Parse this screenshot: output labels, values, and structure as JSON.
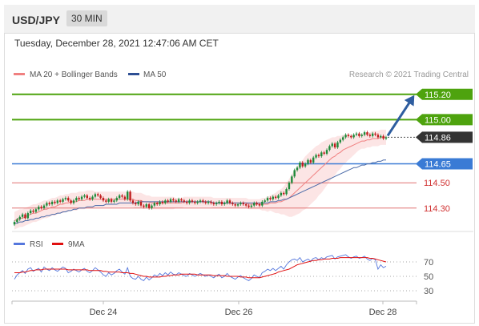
{
  "header": {
    "symbol": "USD/JPY",
    "timeframe": "30 MIN"
  },
  "timestamp": "Tuesday, December 28, 2021 12:47:06 AM CET",
  "colors": {
    "bull": "#1e8a3a",
    "bear": "#c01c1c",
    "ma20": "#f08080",
    "ma50": "#4a6aa8",
    "band": "#fce0e0",
    "green_level": "#4ea30e",
    "blue_level": "#3a7bd5",
    "red_level": "#e07070",
    "current": "#333333",
    "arrow": "#2e5d9f",
    "rsi": "#5577dd",
    "rsi_ma": "#e01010"
  },
  "chart_data": {
    "type": "candlestick",
    "legend": [
      "MA 20 + Bollinger Bands",
      "MA 50"
    ],
    "credit": "Research © 2021 Trading Central",
    "ylim": [
      114.14,
      115.3
    ],
    "levels": [
      {
        "label": "115.20",
        "value": 115.2,
        "style": "resistance"
      },
      {
        "label": "115.00",
        "value": 115.0,
        "style": "resistance"
      },
      {
        "label": "114.86",
        "value": 114.86,
        "style": "current"
      },
      {
        "label": "114.65",
        "value": 114.65,
        "style": "pivot"
      },
      {
        "label": "114.50",
        "value": 114.5,
        "style": "support"
      },
      {
        "label": "114.30",
        "value": 114.3,
        "style": "support"
      }
    ],
    "x_ticks": [
      "Dec 24",
      "Dec 26",
      "Dec 28"
    ],
    "arrow_target": 115.2,
    "close": [
      114.19,
      114.21,
      114.23,
      114.25,
      114.22,
      114.26,
      114.28,
      114.27,
      114.29,
      114.31,
      114.3,
      114.32,
      114.34,
      114.33,
      114.35,
      114.34,
      114.36,
      114.35,
      114.37,
      114.38,
      114.36,
      114.34,
      114.36,
      114.38,
      114.37,
      114.39,
      114.4,
      114.38,
      114.37,
      114.39,
      114.41,
      114.4,
      114.38,
      114.36,
      114.35,
      114.37,
      114.35,
      114.36,
      114.38,
      114.4,
      114.39,
      114.37,
      114.43,
      114.36,
      114.34,
      114.33,
      114.35,
      114.32,
      114.31,
      114.33,
      114.3,
      114.32,
      114.34,
      114.33,
      114.35,
      114.34,
      114.36,
      114.35,
      114.37,
      114.36,
      114.35,
      114.37,
      114.36,
      114.35,
      114.34,
      114.36,
      114.35,
      114.34,
      114.35,
      114.36,
      114.35,
      114.34,
      114.35,
      114.34,
      114.33,
      114.34,
      114.35,
      114.33,
      114.34,
      114.36,
      114.34,
      114.33,
      114.32,
      114.33,
      114.34,
      114.33,
      114.32,
      114.31,
      114.32,
      114.34,
      114.33,
      114.32,
      114.35,
      114.36,
      114.38,
      114.37,
      114.39,
      114.38,
      114.4,
      114.42,
      114.41,
      114.45,
      114.5,
      114.55,
      114.6,
      114.62,
      114.66,
      114.63,
      114.65,
      114.68,
      114.66,
      114.7,
      114.72,
      114.71,
      114.74,
      114.73,
      114.76,
      114.79,
      114.81,
      114.78,
      114.82,
      114.84,
      114.86,
      114.88,
      114.87,
      114.86,
      114.88,
      114.89,
      114.87,
      114.88,
      114.9,
      114.88,
      114.87,
      114.89,
      114.88,
      114.86,
      114.87,
      114.85,
      114.86
    ],
    "ma20": [
      114.2,
      114.21,
      114.22,
      114.22,
      114.23,
      114.24,
      114.25,
      114.26,
      114.26,
      114.27,
      114.28,
      114.29,
      114.29,
      114.3,
      114.31,
      114.31,
      114.32,
      114.33,
      114.33,
      114.34,
      114.34,
      114.35,
      114.35,
      114.35,
      114.36,
      114.36,
      114.36,
      114.37,
      114.37,
      114.37,
      114.37,
      114.37,
      114.37,
      114.37,
      114.37,
      114.37,
      114.37,
      114.37,
      114.37,
      114.37,
      114.37,
      114.37,
      114.37,
      114.37,
      114.37,
      114.36,
      114.36,
      114.36,
      114.35,
      114.35,
      114.35,
      114.34,
      114.34,
      114.34,
      114.34,
      114.34,
      114.34,
      114.34,
      114.34,
      114.34,
      114.34,
      114.34,
      114.34,
      114.35,
      114.35,
      114.35,
      114.35,
      114.35,
      114.35,
      114.35,
      114.35,
      114.35,
      114.35,
      114.35,
      114.34,
      114.34,
      114.34,
      114.34,
      114.34,
      114.34,
      114.34,
      114.34,
      114.34,
      114.34,
      114.34,
      114.34,
      114.34,
      114.33,
      114.33,
      114.33,
      114.33,
      114.33,
      114.33,
      114.33,
      114.33,
      114.34,
      114.34,
      114.34,
      114.35,
      114.35,
      114.36,
      114.37,
      114.38,
      114.4,
      114.42,
      114.44,
      114.46,
      114.48,
      114.5,
      114.52,
      114.54,
      114.56,
      114.58,
      114.6,
      114.62,
      114.64,
      114.66,
      114.68,
      114.7,
      114.71,
      114.73,
      114.74,
      114.76,
      114.77,
      114.78,
      114.79,
      114.8,
      114.81,
      114.82,
      114.83,
      114.83,
      114.84,
      114.84,
      114.85,
      114.85,
      114.85,
      114.86,
      114.86,
      114.86
    ],
    "bb_width": [
      0.07,
      0.07,
      0.07,
      0.07,
      0.07,
      0.07,
      0.07,
      0.07,
      0.07,
      0.07,
      0.07,
      0.07,
      0.07,
      0.07,
      0.07,
      0.07,
      0.07,
      0.07,
      0.07,
      0.07,
      0.07,
      0.07,
      0.07,
      0.07,
      0.07,
      0.07,
      0.07,
      0.07,
      0.07,
      0.07,
      0.06,
      0.06,
      0.06,
      0.06,
      0.06,
      0.06,
      0.06,
      0.06,
      0.06,
      0.06,
      0.06,
      0.06,
      0.06,
      0.06,
      0.06,
      0.06,
      0.06,
      0.06,
      0.06,
      0.05,
      0.05,
      0.05,
      0.05,
      0.05,
      0.05,
      0.05,
      0.05,
      0.05,
      0.05,
      0.05,
      0.04,
      0.04,
      0.04,
      0.04,
      0.04,
      0.04,
      0.04,
      0.04,
      0.04,
      0.04,
      0.04,
      0.04,
      0.04,
      0.04,
      0.04,
      0.04,
      0.04,
      0.04,
      0.04,
      0.04,
      0.04,
      0.04,
      0.04,
      0.04,
      0.04,
      0.04,
      0.04,
      0.04,
      0.04,
      0.04,
      0.04,
      0.04,
      0.05,
      0.05,
      0.06,
      0.06,
      0.07,
      0.08,
      0.09,
      0.1,
      0.11,
      0.13,
      0.15,
      0.17,
      0.18,
      0.19,
      0.2,
      0.2,
      0.21,
      0.21,
      0.21,
      0.21,
      0.21,
      0.2,
      0.2,
      0.19,
      0.18,
      0.17,
      0.16,
      0.15,
      0.14,
      0.13,
      0.12,
      0.11,
      0.1,
      0.09,
      0.08,
      0.07,
      0.06,
      0.06,
      0.06,
      0.06,
      0.06,
      0.06,
      0.06,
      0.06,
      0.06,
      0.06,
      0.06,
      0.06
    ],
    "ma50": [
      114.18,
      114.18,
      114.19,
      114.19,
      114.2,
      114.2,
      114.21,
      114.21,
      114.22,
      114.22,
      114.23,
      114.23,
      114.24,
      114.24,
      114.25,
      114.25,
      114.26,
      114.26,
      114.27,
      114.27,
      114.28,
      114.28,
      114.29,
      114.29,
      114.3,
      114.3,
      114.3,
      114.31,
      114.31,
      114.31,
      114.32,
      114.32,
      114.32,
      114.32,
      114.33,
      114.33,
      114.33,
      114.33,
      114.33,
      114.34,
      114.34,
      114.34,
      114.34,
      114.34,
      114.34,
      114.34,
      114.35,
      114.35,
      114.35,
      114.35,
      114.35,
      114.35,
      114.35,
      114.35,
      114.35,
      114.35,
      114.35,
      114.35,
      114.35,
      114.35,
      114.35,
      114.35,
      114.35,
      114.35,
      114.35,
      114.35,
      114.35,
      114.35,
      114.35,
      114.35,
      114.35,
      114.35,
      114.35,
      114.35,
      114.34,
      114.34,
      114.34,
      114.34,
      114.34,
      114.34,
      114.34,
      114.34,
      114.34,
      114.34,
      114.34,
      114.34,
      114.34,
      114.34,
      114.34,
      114.34,
      114.34,
      114.34,
      114.34,
      114.34,
      114.34,
      114.35,
      114.35,
      114.35,
      114.36,
      114.36,
      114.37,
      114.37,
      114.38,
      114.39,
      114.4,
      114.41,
      114.42,
      114.43,
      114.44,
      114.45,
      114.46,
      114.47,
      114.48,
      114.49,
      114.5,
      114.51,
      114.52,
      114.53,
      114.54,
      114.55,
      114.56,
      114.57,
      114.58,
      114.59,
      114.6,
      114.61,
      114.62,
      114.62,
      114.63,
      114.64,
      114.64,
      114.65,
      114.65,
      114.66,
      114.66,
      114.67,
      114.67,
      114.68,
      114.68
    ]
  },
  "rsi_panel": {
    "legend": [
      "RSI",
      "9MA"
    ],
    "levels": [
      {
        "label": "70",
        "value": 70
      },
      {
        "label": "50",
        "value": 50
      },
      {
        "label": "30",
        "value": 30
      }
    ],
    "ylim": [
      20,
      80
    ],
    "rsi": [
      46,
      52,
      55,
      58,
      54,
      60,
      62,
      57,
      59,
      61,
      56,
      63,
      60,
      58,
      62,
      59,
      57,
      60,
      63,
      61,
      55,
      57,
      60,
      58,
      56,
      59,
      61,
      57,
      55,
      58,
      62,
      59,
      56,
      52,
      50,
      55,
      52,
      54,
      58,
      60,
      56,
      53,
      62,
      50,
      47,
      46,
      50,
      46,
      44,
      49,
      45,
      48,
      52,
      50,
      54,
      51,
      55,
      52,
      56,
      53,
      52,
      55,
      53,
      51,
      50,
      54,
      52,
      50,
      52,
      54,
      52,
      50,
      52,
      50,
      48,
      51,
      53,
      48,
      50,
      54,
      50,
      48,
      46,
      49,
      51,
      48,
      46,
      44,
      47,
      52,
      50,
      48,
      55,
      57,
      60,
      58,
      61,
      58,
      61,
      64,
      60,
      66,
      70,
      73,
      74,
      72,
      76,
      70,
      72,
      74,
      71,
      75,
      76,
      73,
      76,
      74,
      77,
      78,
      79,
      74,
      77,
      78,
      79,
      80,
      77,
      75,
      77,
      78,
      75,
      76,
      78,
      74,
      72,
      75,
      73,
      60,
      66,
      62,
      64
    ],
    "ma": [
      55,
      55,
      55,
      56,
      56,
      57,
      58,
      58,
      59,
      59,
      59,
      60,
      60,
      60,
      60,
      60,
      60,
      60,
      60,
      60,
      59,
      59,
      59,
      59,
      59,
      59,
      59,
      59,
      58,
      58,
      58,
      58,
      58,
      57,
      57,
      56,
      56,
      56,
      56,
      56,
      55,
      55,
      55,
      54,
      54,
      53,
      52,
      51,
      50,
      50,
      49,
      49,
      49,
      49,
      49,
      50,
      50,
      51,
      51,
      52,
      52,
      52,
      53,
      53,
      53,
      53,
      53,
      53,
      52,
      52,
      52,
      52,
      52,
      52,
      51,
      51,
      51,
      51,
      51,
      50,
      50,
      50,
      50,
      50,
      49,
      49,
      49,
      48,
      48,
      48,
      48,
      48,
      49,
      50,
      51,
      52,
      53,
      54,
      56,
      57,
      58,
      59,
      60,
      62,
      64,
      66,
      67,
      68,
      69,
      70,
      71,
      72,
      72,
      73,
      73,
      74,
      74,
      74,
      75,
      75,
      75,
      76,
      76,
      76,
      76,
      76,
      76,
      76,
      76,
      76,
      76,
      76,
      75,
      75,
      74,
      73,
      72,
      71,
      70
    ]
  }
}
